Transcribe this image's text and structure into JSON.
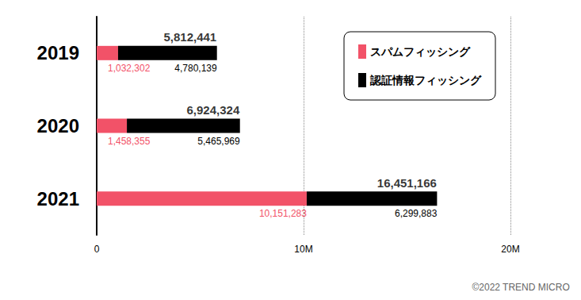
{
  "chart_data": {
    "type": "bar",
    "orientation": "horizontal",
    "stacked": true,
    "data_labels": true,
    "grid": true,
    "legend": "top-right",
    "categories": [
      "2019",
      "2020",
      "2021"
    ],
    "series": [
      {
        "name": "スパムフィッシング",
        "color": "#f25268",
        "values": [
          1032302,
          1458355,
          10151283
        ],
        "value_labels": [
          "1,032,302",
          "1,458,355",
          "10,151,283"
        ]
      },
      {
        "name": "認証情報フィッシング",
        "color": "#000000",
        "values": [
          4780139,
          5465969,
          6299883
        ],
        "value_labels": [
          "4,780,139",
          "5,465,969",
          "6,299,883"
        ]
      }
    ],
    "totals": [
      5812441,
      6924324,
      16451166
    ],
    "total_labels": [
      "5,812,441",
      "6,924,324",
      "16,451,166"
    ],
    "xlim": [
      0,
      20000000
    ],
    "xticks": [
      0,
      {
        "value": 10000000,
        "label": "10M"
      },
      {
        "value": 20000000,
        "label": "20M"
      }
    ],
    "annotations": [
      "©2022 TREND MICRO"
    ]
  }
}
